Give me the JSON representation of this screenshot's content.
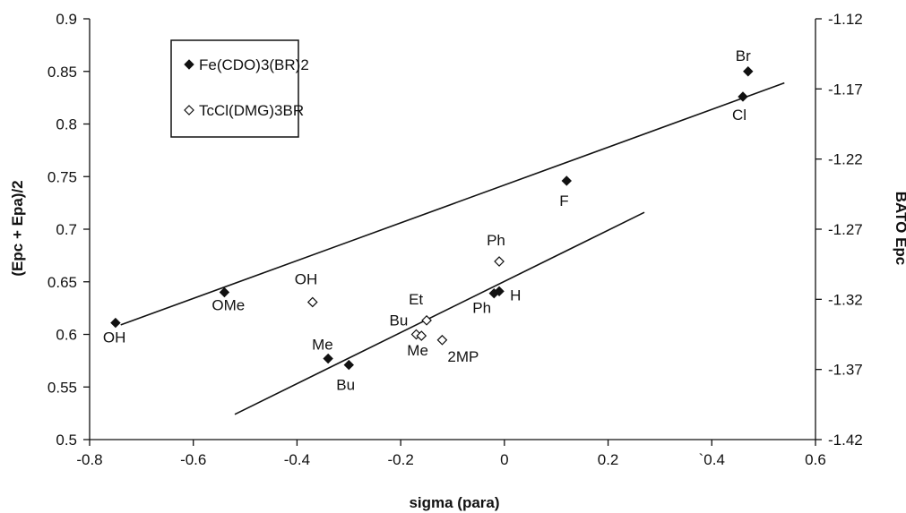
{
  "chart_data": {
    "type": "scatter",
    "title": "",
    "xlabel": "sigma (para)",
    "ylabel_left": "(Epc + Epa)/2",
    "ylabel_right": "BATO Epc",
    "xlim": [
      -0.8,
      0.6
    ],
    "ylim_left": [
      0.5,
      0.9
    ],
    "ylim_right": [
      -1.42,
      -1.12
    ],
    "x_ticks": [
      "-0.8",
      "-0.6",
      "-0.4",
      "-0.2",
      "0",
      "0.2",
      "`0.4",
      "0.6"
    ],
    "y_left_ticks": [
      "0.5",
      "0.55",
      "0.6",
      "0.65",
      "0.7",
      "0.75",
      "0.8",
      "0.85",
      "0.9"
    ],
    "y_right_ticks": [
      "-1.42",
      "-1.37",
      "-1.32",
      "-1.27",
      "-1.22",
      "-1.17",
      "-1.12"
    ],
    "grid": false,
    "legend_position": "top-left",
    "series": [
      {
        "name": "Fe(CDO)3(BR)2",
        "marker": "filled-diamond",
        "axis": "left",
        "points": [
          {
            "x": -0.75,
            "y": 0.611,
            "label": "OH"
          },
          {
            "x": -0.54,
            "y": 0.64,
            "label": "OMe"
          },
          {
            "x": -0.34,
            "y": 0.577,
            "label": "Me"
          },
          {
            "x": -0.3,
            "y": 0.571,
            "label": "Bu"
          },
          {
            "x": -0.02,
            "y": 0.639,
            "label": "Ph"
          },
          {
            "x": -0.01,
            "y": 0.641,
            "label": "H"
          },
          {
            "x": 0.12,
            "y": 0.746,
            "label": "F"
          },
          {
            "x": 0.46,
            "y": 0.826,
            "label": "Cl"
          },
          {
            "x": 0.47,
            "y": 0.85,
            "label": "Br"
          }
        ],
        "fit_line": {
          "x": [
            -0.74,
            0.54
          ],
          "y": [
            0.609,
            0.839
          ]
        }
      },
      {
        "name": "TcCl(DMG)3BR",
        "marker": "open-diamond",
        "axis": "right",
        "points": [
          {
            "x": -0.37,
            "y": -1.322,
            "label": "OH"
          },
          {
            "x": -0.17,
            "y": -1.345,
            "label": "Bu"
          },
          {
            "x": -0.16,
            "y": -1.346,
            "label": "Me"
          },
          {
            "x": -0.15,
            "y": -1.335,
            "label": "Et"
          },
          {
            "x": -0.12,
            "y": -1.349,
            "label": "2MP"
          },
          {
            "x": -0.01,
            "y": -1.293,
            "label": "Ph"
          }
        ],
        "fit_line": {
          "x": [
            -0.52,
            0.27
          ],
          "y": [
            -1.402,
            -1.258
          ]
        }
      }
    ]
  }
}
